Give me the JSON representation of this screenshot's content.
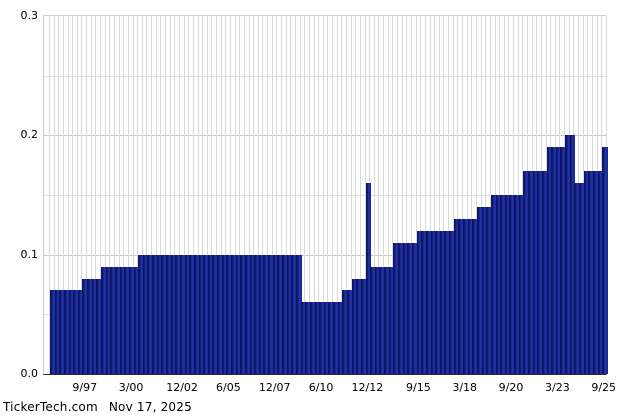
{
  "chart_data": {
    "type": "bar",
    "title": "",
    "xlabel": "",
    "ylabel": "",
    "ylim": [
      0,
      0.3
    ],
    "grid": true,
    "legend_position": "none",
    "y_tick_values": [
      0.0,
      0.1,
      0.2,
      0.3
    ],
    "y_tick_labels": [
      "0.0",
      "0.1",
      "0.2",
      "0.3"
    ],
    "y_minor_gridline_values": [
      0.05,
      0.15,
      0.25
    ],
    "x_tick_labels": [
      "9/97",
      "3/00",
      "12/02",
      "6/05",
      "12/07",
      "6/10",
      "12/12",
      "9/15",
      "3/18",
      "9/20",
      "3/23",
      "9/25"
    ],
    "x_tick_bar_indices": [
      7,
      17,
      28,
      38,
      48,
      58,
      68,
      79,
      89,
      99,
      109,
      119
    ],
    "values": [
      0.07,
      0.07,
      0.07,
      0.07,
      0.07,
      0.07,
      0.07,
      0.08,
      0.08,
      0.08,
      0.08,
      0.09,
      0.09,
      0.09,
      0.09,
      0.09,
      0.09,
      0.09,
      0.09,
      0.1,
      0.1,
      0.1,
      0.1,
      0.1,
      0.1,
      0.1,
      0.1,
      0.1,
      0.1,
      0.1,
      0.1,
      0.1,
      0.1,
      0.1,
      0.1,
      0.1,
      0.1,
      0.1,
      0.1,
      0.1,
      0.1,
      0.1,
      0.1,
      0.1,
      0.1,
      0.1,
      0.1,
      0.1,
      0.1,
      0.1,
      0.1,
      0.1,
      0.1,
      0.1,
      0.06,
      0.06,
      0.06,
      0.06,
      0.06,
      0.06,
      0.06,
      0.06,
      0.06,
      0.07,
      0.07,
      0.08,
      0.08,
      0.08,
      0.16,
      0.09,
      0.09,
      0.09,
      0.09,
      0.09,
      0.11,
      0.11,
      0.11,
      0.11,
      0.11,
      0.12,
      0.12,
      0.12,
      0.12,
      0.12,
      0.12,
      0.12,
      0.12,
      0.13,
      0.13,
      0.13,
      0.13,
      0.13,
      0.14,
      0.14,
      0.14,
      0.15,
      0.15,
      0.15,
      0.15,
      0.15,
      0.15,
      0.15,
      0.17,
      0.17,
      0.17,
      0.17,
      0.17,
      0.19,
      0.19,
      0.19,
      0.19,
      0.2,
      0.2,
      0.16,
      0.16,
      0.17,
      0.17,
      0.17,
      0.17,
      0.19
    ]
  },
  "colors": {
    "background": "#ffffff",
    "bar_edge": "#0b1566",
    "bar_highlight": "#2433a6",
    "bar_base": "#17258c",
    "grid_horizontal_major": "#c9c9c9",
    "grid_horizontal_minor": "#dddddd",
    "grid_vertical": "#d9d9d9",
    "plot_border": "#cfcfcf",
    "baseline": "#2a2a2a",
    "text": "#000000"
  },
  "footer": {
    "source": "TickerTech.com",
    "date": "Nov 17, 2025"
  }
}
